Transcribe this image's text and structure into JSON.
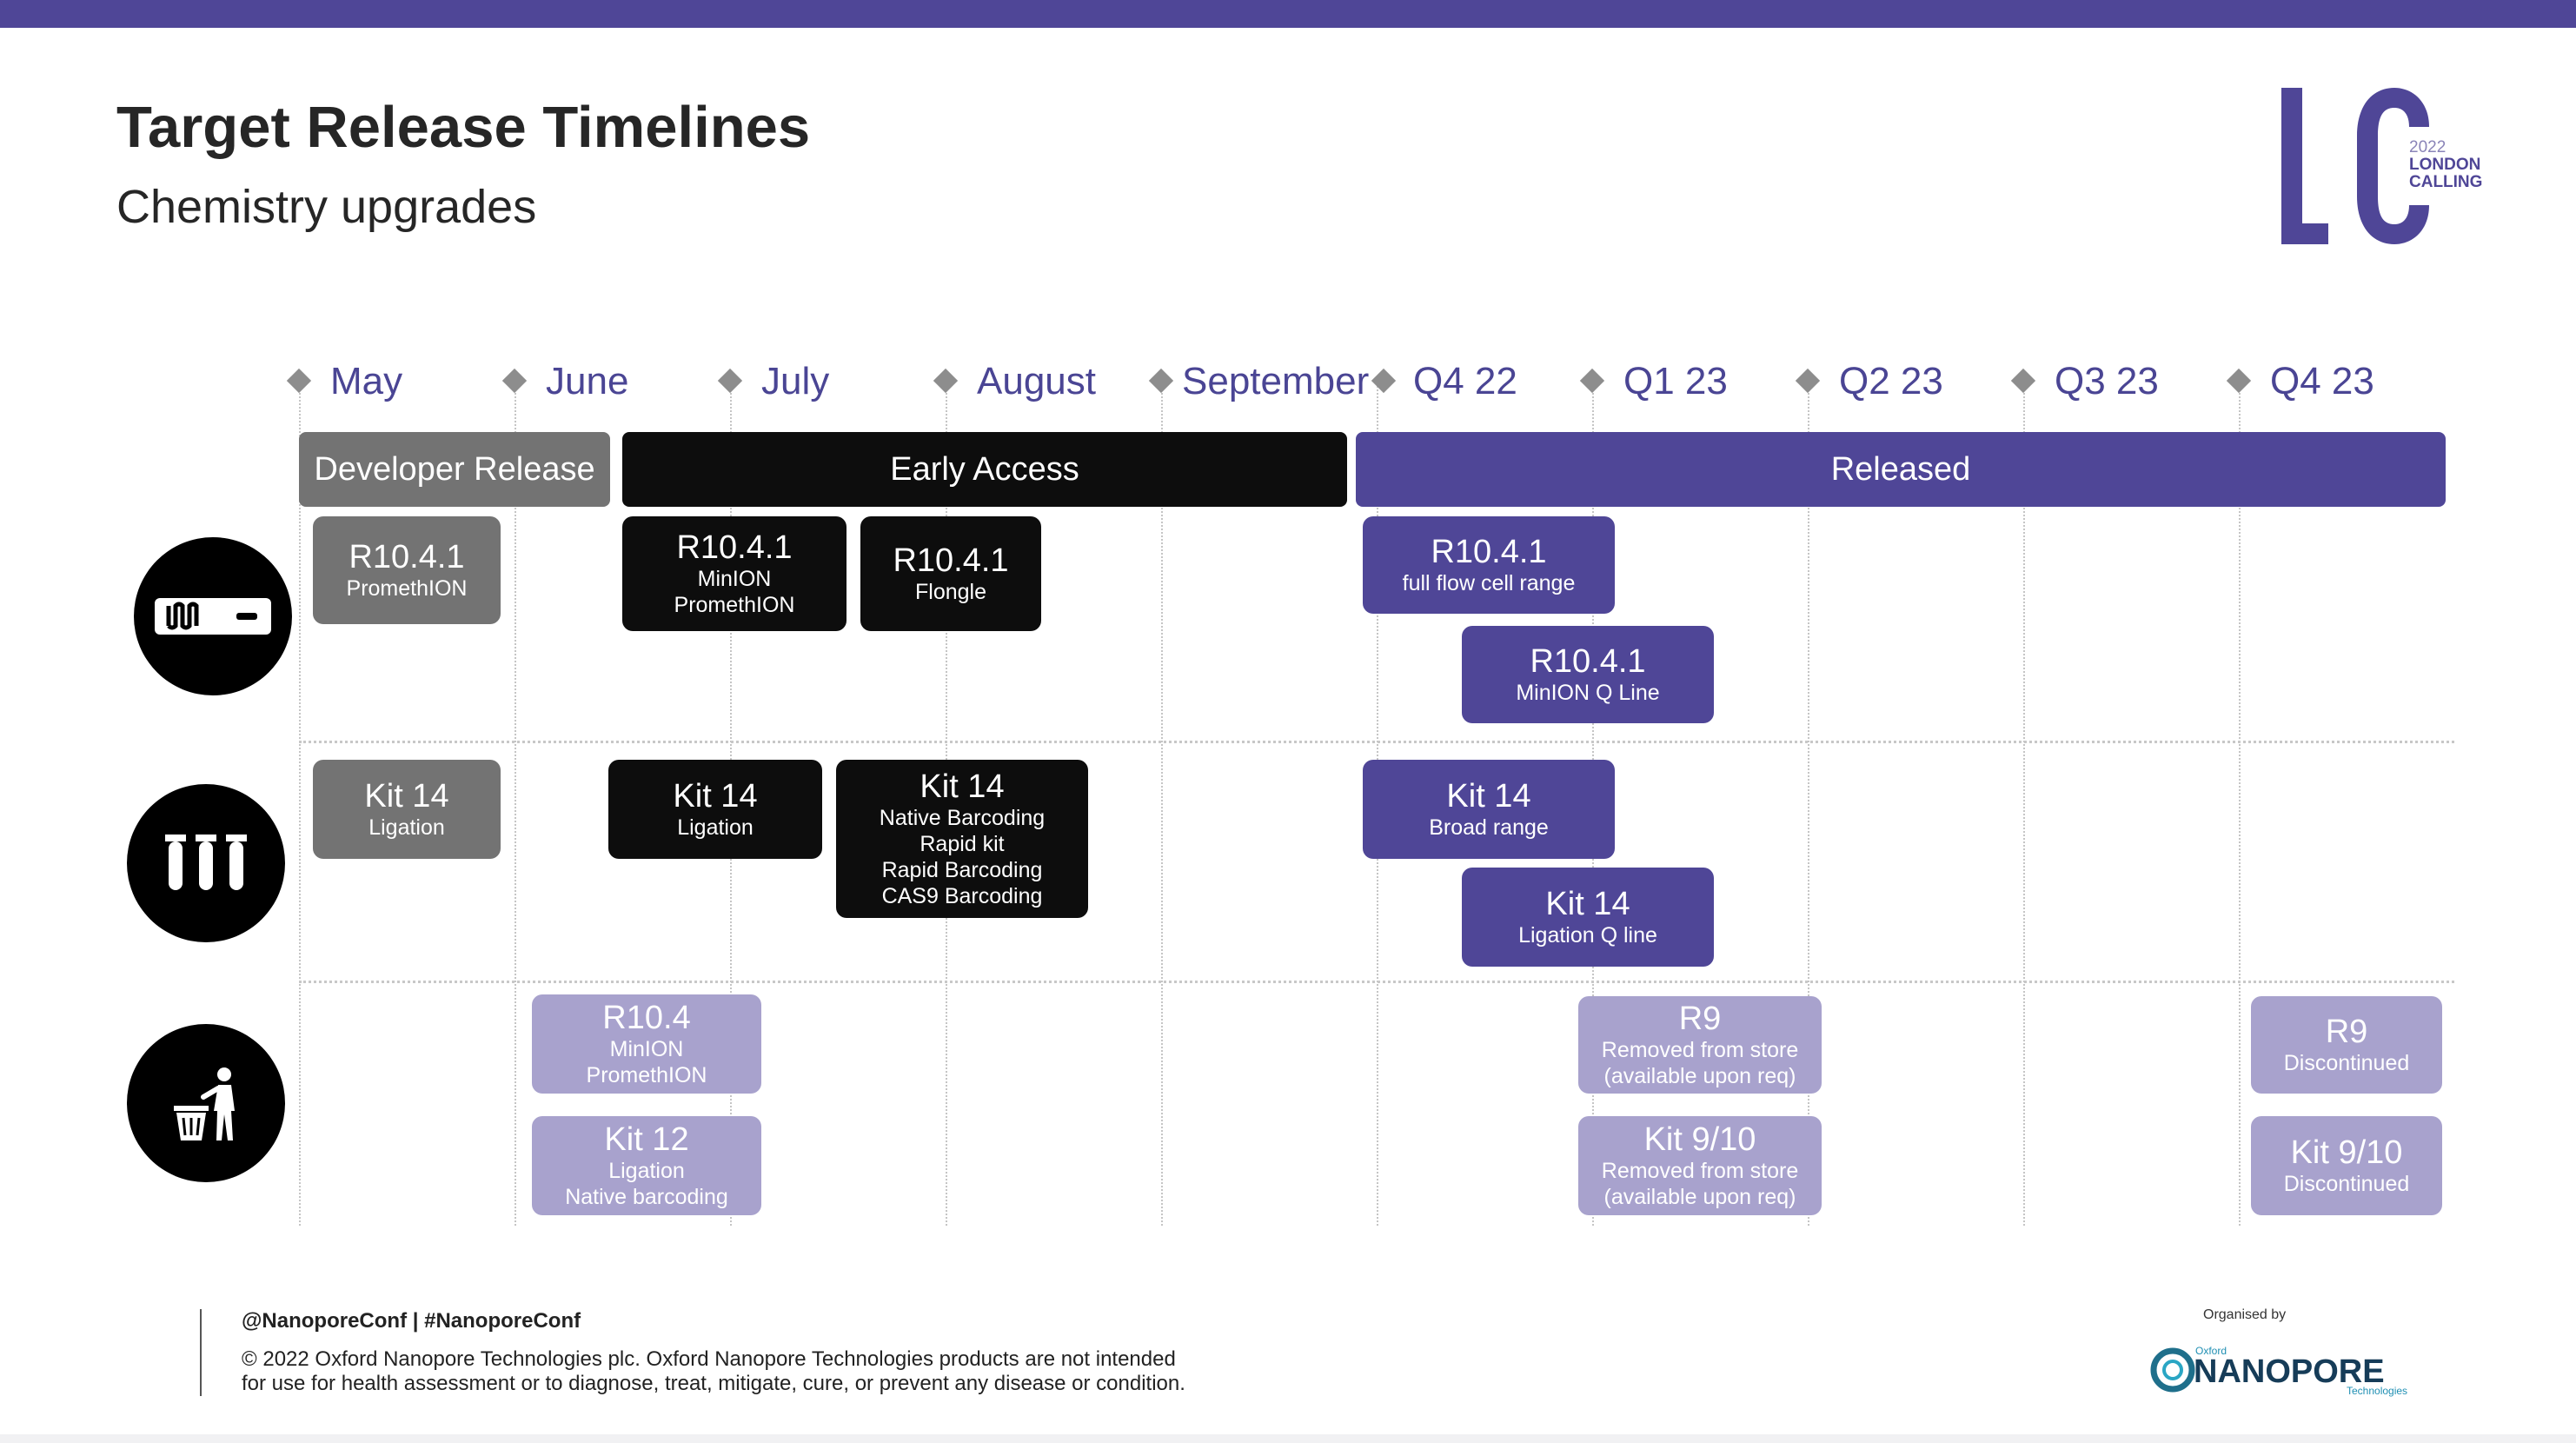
{
  "header": {
    "title": "Target Release Timelines",
    "subtitle": "Chemistry upgrades"
  },
  "conference_logo": {
    "letters": "LC",
    "year": "2022",
    "name_line1": "LONDON",
    "name_line2": "CALLING",
    "color": "#4f4697"
  },
  "timeline": {
    "months": [
      "May",
      "June",
      "July",
      "August",
      "September",
      "Q4 22",
      "Q1 23",
      "Q2 23",
      "Q3 23",
      "Q4 23"
    ],
    "phases": {
      "developer_release": "Developer Release",
      "early_access": "Early Access",
      "released": "Released"
    }
  },
  "rows": {
    "flow_cells": {
      "icon": "flow-cell-icon",
      "items": [
        {
          "title": "R10.4.1",
          "sub": [
            "PromethION"
          ]
        },
        {
          "title": "R10.4.1",
          "sub": [
            "MinION",
            "PromethION"
          ]
        },
        {
          "title": "R10.4.1",
          "sub": [
            "Flongle"
          ]
        },
        {
          "title": "R10.4.1",
          "sub": [
            "full flow cell range"
          ]
        },
        {
          "title": "R10.4.1",
          "sub": [
            "MinION Q Line"
          ]
        }
      ]
    },
    "kits": {
      "icon": "test-tubes-icon",
      "items": [
        {
          "title": "Kit 14",
          "sub": [
            "Ligation"
          ]
        },
        {
          "title": "Kit 14",
          "sub": [
            "Ligation"
          ]
        },
        {
          "title": "Kit 14",
          "sub": [
            "Native Barcoding",
            "Rapid kit",
            "Rapid Barcoding",
            "CAS9 Barcoding"
          ]
        },
        {
          "title": "Kit 14",
          "sub": [
            "Broad range"
          ]
        },
        {
          "title": "Kit 14",
          "sub": [
            "Ligation Q line"
          ]
        }
      ]
    },
    "discontinued": {
      "icon": "trash-bin-icon",
      "items": [
        {
          "title": "R10.4",
          "sub": [
            "MinION",
            "PromethION"
          ]
        },
        {
          "title": "Kit 12",
          "sub": [
            "Ligation",
            "Native barcoding"
          ]
        },
        {
          "title": "R9",
          "sub": [
            "Removed from store",
            "(available upon req)"
          ]
        },
        {
          "title": "Kit 9/10",
          "sub": [
            "Removed from store",
            "(available upon req)"
          ]
        },
        {
          "title": "R9",
          "sub": [
            "Discontinued"
          ]
        },
        {
          "title": "Kit 9/10",
          "sub": [
            "Discontinued"
          ]
        }
      ]
    }
  },
  "colors": {
    "purple": "#4f4697",
    "lavender": "#a8a2cd",
    "gray": "#737373",
    "black": "#0d0d0d"
  },
  "footer": {
    "handles": "@NanoporeConf | #NanoporeConf",
    "disclaimer_line1": "© 2022 Oxford Nanopore Technologies plc. Oxford Nanopore Technologies products are not intended",
    "disclaimer_line2": "for use for health assessment or to diagnose, treat, mitigate, cure, or prevent any disease or condition.",
    "organised_by": "Organised by",
    "org_logo": {
      "small_top": "Oxford",
      "name": "NANOPORE",
      "small_bottom": "Technologies"
    }
  }
}
